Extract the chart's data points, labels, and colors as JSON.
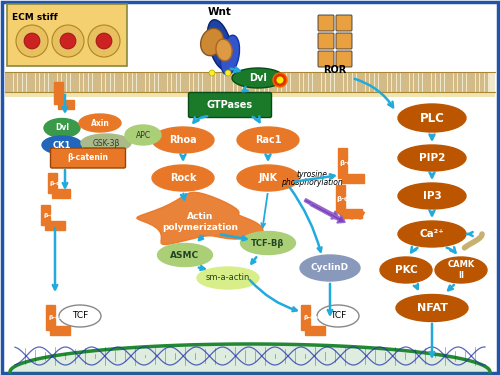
{
  "bg_color": "#ffffff",
  "border_color": "#2255aa",
  "membrane_top_color": "#c8a86a",
  "membrane_bot_color": "#e8d8a0",
  "membrane_inner_color": "#f0e8cc",
  "ecm_box_color": "#f5d070",
  "ecm_border_color": "#888840",
  "cell_fill": "#e8c060",
  "cell_dot": "#cc2222",
  "orange_dark": "#bb5500",
  "orange_mid": "#d06010",
  "orange_light": "#e87828",
  "green_dark": "#1a7a2a",
  "green_mid": "#3a9a4a",
  "green_light": "#88bb55",
  "green_pale": "#aacf77",
  "blue_ck1": "#2266bb",
  "blue_gray": "#7788aa",
  "cyan_arrow": "#22aadd",
  "purple1": "#7744bb",
  "purple2": "#9966cc",
  "dna_blue": "#2233aa",
  "dna_gray": "#8899bb",
  "nucleus_green": "#228833",
  "tan_er": "#c8b070",
  "title_ecm": "ECM stiff",
  "title_wnt": "Wnt",
  "title_ror": "ROR",
  "title_dvl": "Dvl",
  "title_gtpases": "GTPases",
  "title_rhoa": "Rhoa",
  "title_rac1": "Rac1",
  "title_rock": "Rock",
  "title_jnk": "JNK",
  "title_plc": "PLC",
  "title_pip2": "PIP2",
  "title_ip3": "IP3",
  "title_ca": "Ca²⁺",
  "title_pkc": "PKC",
  "title_camk": "CAMK\nII",
  "title_nfat": "NFAT",
  "title_asmc": "ASMC",
  "title_tgfb": "TCF-Bβ",
  "title_smactin": "sm-a-actin",
  "title_cyclind": "CyclinD",
  "title_actin": "Actin\npolymerization",
  "title_bcatenin": "β-catenin",
  "title_tcf": "TCF",
  "title_ck1": "CK1",
  "title_dvl2": "Dvl",
  "title_axin": "Axin",
  "title_gsk": "GSK-3β",
  "title_apc": "APC",
  "title_tyrosine": "tyrosine",
  "title_phosphorylation": "phosphorylation"
}
